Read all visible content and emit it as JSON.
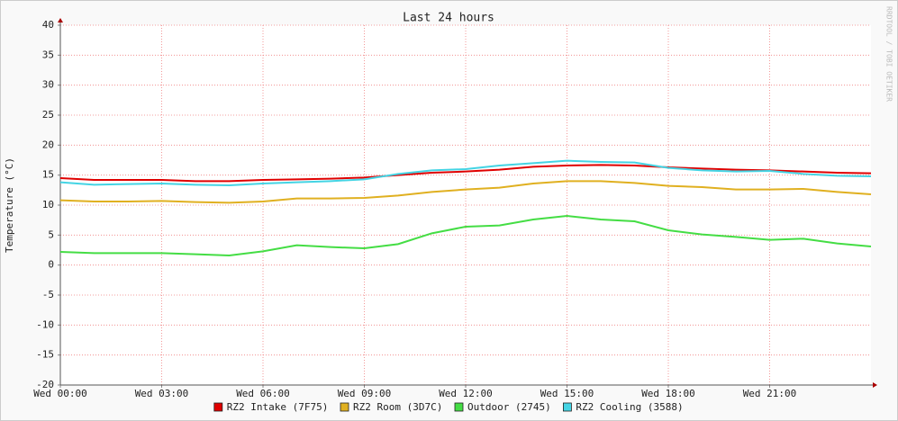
{
  "chart_data": {
    "type": "line",
    "title": "Last 24 hours",
    "y_label": "Temperature (°C)",
    "side_text": "RRDTOOL / TOBI OETIKER",
    "x": [
      0,
      1,
      2,
      3,
      4,
      5,
      6,
      7,
      8,
      9,
      10,
      11,
      12,
      13,
      14,
      15,
      16,
      17,
      18,
      19,
      20,
      21,
      22,
      23,
      24
    ],
    "xlim": [
      0,
      24
    ],
    "xticks": [
      {
        "value": 0,
        "label": "Wed 00:00"
      },
      {
        "value": 3,
        "label": "Wed 03:00"
      },
      {
        "value": 6,
        "label": "Wed 06:00"
      },
      {
        "value": 9,
        "label": "Wed 09:00"
      },
      {
        "value": 12,
        "label": "Wed 12:00"
      },
      {
        "value": 15,
        "label": "Wed 15:00"
      },
      {
        "value": 18,
        "label": "Wed 18:00"
      },
      {
        "value": 21,
        "label": "Wed 21:00"
      }
    ],
    "ylim": [
      -20,
      40
    ],
    "yticks": [
      -20,
      -15,
      -10,
      -5,
      0,
      5,
      10,
      15,
      20,
      25,
      30,
      35,
      40
    ],
    "grid": true,
    "series": [
      {
        "name": "RZ2 Intake (7F75)",
        "color": "#e00000",
        "values": [
          14.5,
          14.2,
          14.2,
          14.2,
          14.0,
          14.0,
          14.2,
          14.3,
          14.4,
          14.6,
          15.0,
          15.4,
          15.6,
          15.9,
          16.4,
          16.6,
          16.7,
          16.6,
          16.3,
          16.1,
          15.9,
          15.8,
          15.6,
          15.4,
          15.3
        ]
      },
      {
        "name": "RZ2 Room (3D7C)",
        "color": "#e0b020",
        "values": [
          10.8,
          10.6,
          10.6,
          10.7,
          10.5,
          10.4,
          10.6,
          11.1,
          11.1,
          11.2,
          11.6,
          12.2,
          12.6,
          12.9,
          13.6,
          14.0,
          14.0,
          13.7,
          13.2,
          13.0,
          12.6,
          12.6,
          12.7,
          12.2,
          11.8
        ]
      },
      {
        "name": "Outdoor (2745)",
        "color": "#44dd44",
        "values": [
          2.2,
          2.0,
          2.0,
          2.0,
          1.8,
          1.6,
          2.3,
          3.3,
          3.0,
          2.8,
          3.5,
          5.3,
          6.4,
          6.6,
          7.6,
          8.2,
          7.6,
          7.3,
          5.8,
          5.1,
          4.7,
          4.2,
          4.4,
          3.6,
          3.1
        ]
      },
      {
        "name": "RZ2 Cooling (3588)",
        "color": "#44d4e4",
        "values": [
          13.8,
          13.4,
          13.5,
          13.6,
          13.4,
          13.3,
          13.6,
          13.8,
          14.0,
          14.3,
          15.2,
          15.8,
          16.0,
          16.6,
          17.0,
          17.4,
          17.2,
          17.1,
          16.2,
          15.8,
          15.6,
          15.7,
          15.2,
          14.9,
          14.8
        ]
      }
    ]
  }
}
